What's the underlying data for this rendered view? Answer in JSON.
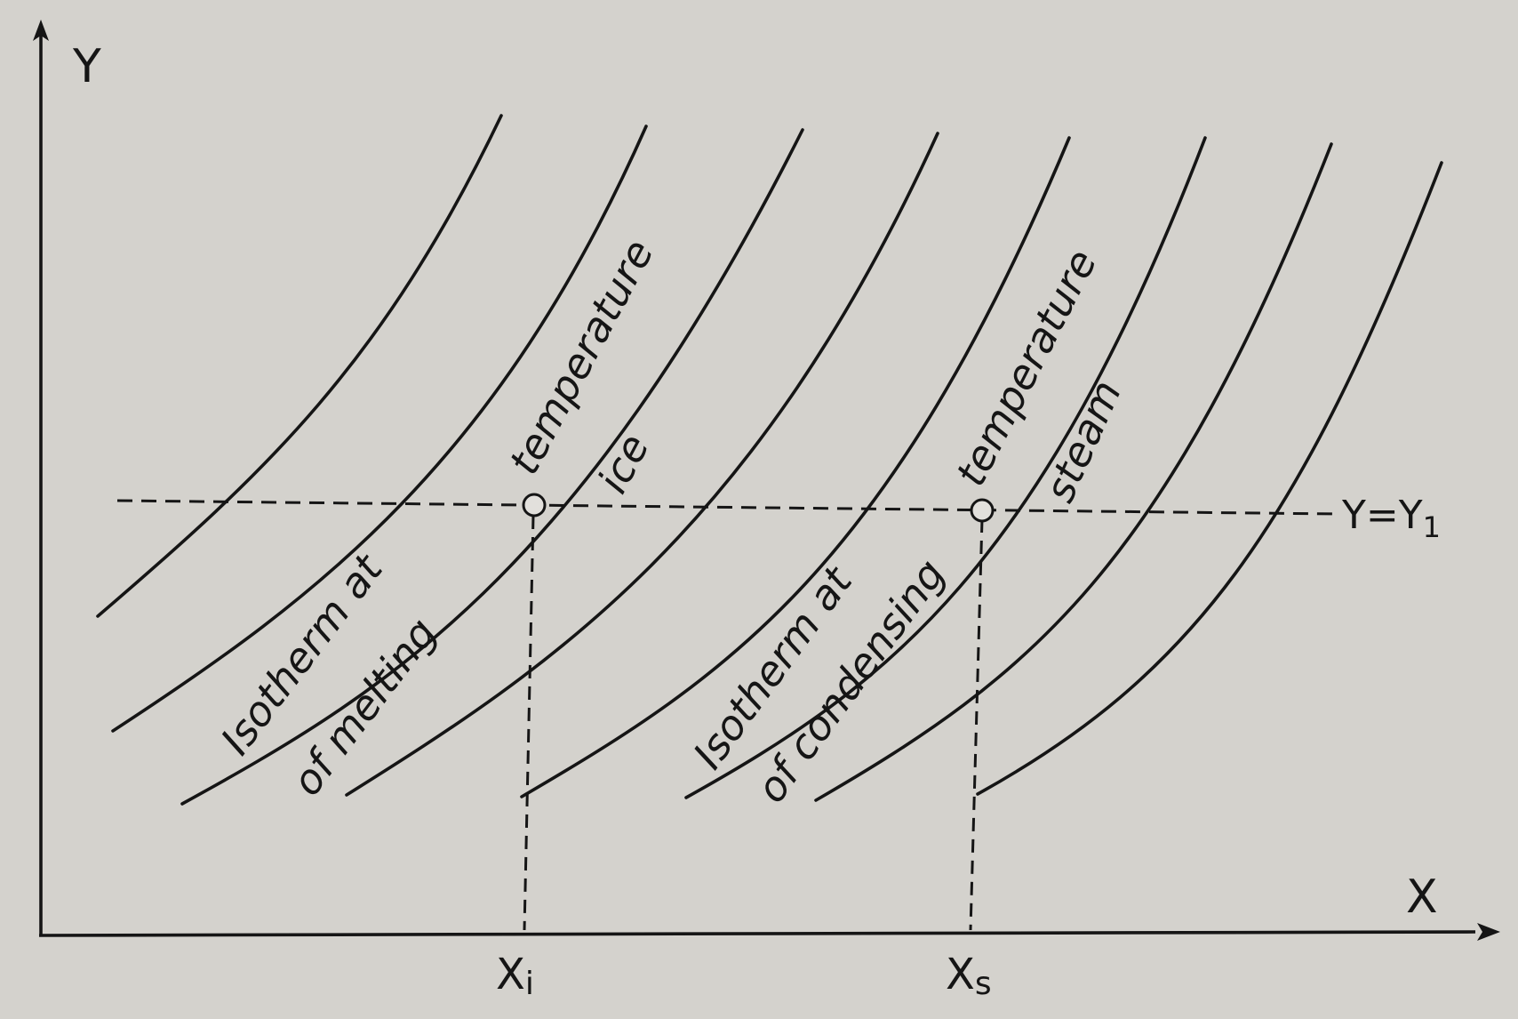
{
  "axes": {
    "y_label": "Y",
    "x_label": "X"
  },
  "reference_line": {
    "label": "Y=Y",
    "label_subscript": "1"
  },
  "ticks": {
    "xi": {
      "main": "X",
      "sub": "i"
    },
    "xs": {
      "main": "X",
      "sub": "s"
    }
  },
  "annotations": {
    "ice_lower": "Isotherm at",
    "ice_lower2": "of melting",
    "ice_upper": "temperature",
    "ice_upper2": "ice",
    "steam_lower": "Isotherm at",
    "steam_lower2": "of condensing",
    "steam_upper": "temperature",
    "steam_upper2": "steam"
  },
  "colors": {
    "background": "#d4d2cd",
    "ink": "#151515"
  }
}
